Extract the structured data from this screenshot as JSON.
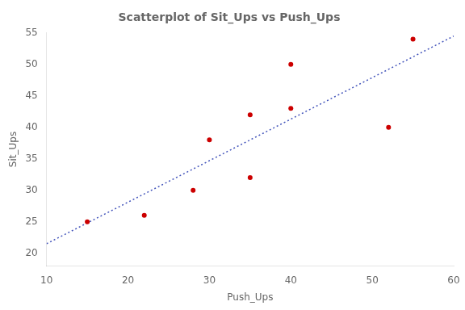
{
  "chart_data": {
    "type": "scatter",
    "title": "Scatterplot of Sit_Ups vs Push_Ups",
    "xlabel": "Push_Ups",
    "ylabel": "Sit_Ups",
    "xlim": [
      10,
      60
    ],
    "ylim": [
      18,
      55
    ],
    "xticks": [
      10,
      20,
      30,
      40,
      50,
      60
    ],
    "yticks": [
      20,
      25,
      30,
      35,
      40,
      45,
      50,
      55
    ],
    "grid": false,
    "series": [
      {
        "type": "scatter",
        "color": "#cc0000",
        "marker": "circle",
        "x": [
          15,
          22,
          28,
          30,
          35,
          35,
          40,
          40,
          52,
          55
        ],
        "values": [
          25,
          26,
          30,
          38,
          42,
          32,
          50,
          43,
          40,
          54
        ]
      },
      {
        "type": "line",
        "color": "#4455bb",
        "line_style": "dotted",
        "x": [
          10,
          60
        ],
        "values": [
          21.5,
          54.5
        ]
      }
    ]
  }
}
